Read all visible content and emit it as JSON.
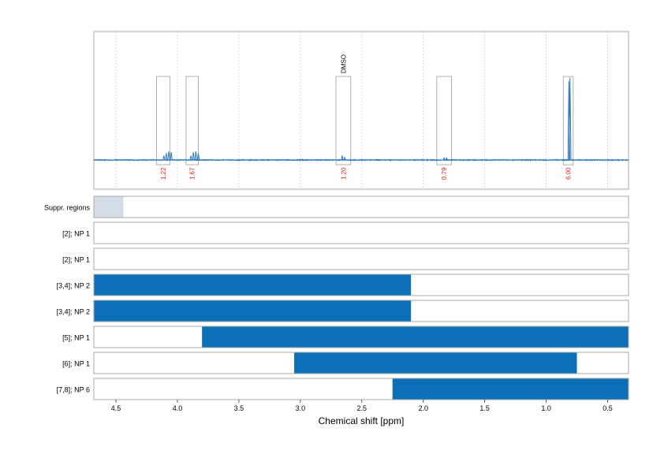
{
  "chart_data": {
    "type": "nmr_spectrum_with_integration_regions",
    "title": "",
    "xlabel": "Chemical shift [ppm]",
    "ylabel": "",
    "xlim": [
      4.68,
      0.33
    ],
    "x_reversed": true,
    "x_ticks": [
      4.5,
      4.0,
      3.5,
      3.0,
      2.5,
      2.0,
      1.5,
      1.0,
      0.5
    ],
    "x_tick_labels": [
      "4.5",
      "4.0",
      "3.5",
      "3.0",
      "2.5",
      "2.0",
      "1.5",
      "1.0",
      "0.5"
    ],
    "grid": true,
    "colors": {
      "spectrum": "#2e7bbf",
      "bar": "#0b70b8",
      "suppression": "#d3dde8",
      "integral_label": "#e32020",
      "frame": "#a8a8a8",
      "grid": "#cccccc"
    },
    "peaks": [
      {
        "ppm": 4.09,
        "height": 0.08
      },
      {
        "ppm": 4.07,
        "height": 0.1
      },
      {
        "ppm": 4.05,
        "height": 0.09
      },
      {
        "ppm": 4.11,
        "height": 0.05
      },
      {
        "ppm": 3.87,
        "height": 0.09
      },
      {
        "ppm": 3.85,
        "height": 0.1
      },
      {
        "ppm": 3.83,
        "height": 0.08
      },
      {
        "ppm": 3.89,
        "height": 0.05
      },
      {
        "ppm": 2.66,
        "height": 0.05
      },
      {
        "ppm": 2.64,
        "height": 0.03
      },
      {
        "ppm": 1.83,
        "height": 0.025
      },
      {
        "ppm": 1.81,
        "height": 0.025
      },
      {
        "ppm": 0.815,
        "height": 0.91
      },
      {
        "ppm": 0.806,
        "height": 0.95
      }
    ],
    "integration_regions": [
      {
        "from": 4.17,
        "to": 4.06,
        "integral": "1.22",
        "annotation": ""
      },
      {
        "from": 3.93,
        "to": 3.83,
        "integral": "1.67",
        "annotation": ""
      },
      {
        "from": 2.71,
        "to": 2.59,
        "integral": "1.20",
        "annotation": "DMSO"
      },
      {
        "from": 1.89,
        "to": 1.77,
        "integral": "0.79",
        "annotation": ""
      },
      {
        "from": 0.86,
        "to": 0.78,
        "integral": "6.00",
        "annotation": ""
      }
    ],
    "tracks": [
      {
        "label": "Suppr. regions",
        "kind": "suppression",
        "from": 4.68,
        "to": 4.44
      },
      {
        "label": "[2]; NP 1",
        "kind": "empty"
      },
      {
        "label": "[2]; NP 1",
        "kind": "empty"
      },
      {
        "label": "[3,4]; NP 2",
        "kind": "bar",
        "from": 4.68,
        "to": 2.1
      },
      {
        "label": "[3,4]; NP 2",
        "kind": "bar",
        "from": 4.68,
        "to": 2.1
      },
      {
        "label": "[5]; NP 1",
        "kind": "bar",
        "from": 3.8,
        "to": 0.33
      },
      {
        "label": "[6]; NP 1",
        "kind": "bar",
        "from": 3.05,
        "to": 0.75
      },
      {
        "label": "[7,8]; NP 6",
        "kind": "bar",
        "from": 2.25,
        "to": 0.33
      }
    ]
  }
}
